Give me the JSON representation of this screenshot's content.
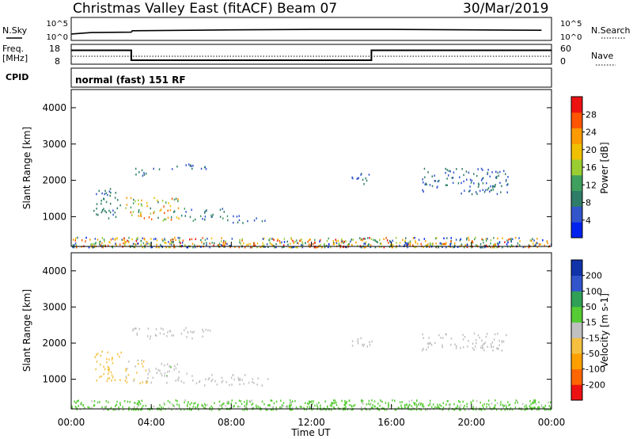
{
  "header": {
    "station": "Christmas Valley East (fitACF)",
    "beam": "Beam 07",
    "date": "30/Mar/2019"
  },
  "strip_labels": {
    "nsky": "N.Sky",
    "nsearch": "N.Search",
    "freq_l1": "Freq.",
    "freq_l2": "[MHz]",
    "nave": "Nave",
    "cpid": "CPID",
    "cpid_value": "normal (fast) 151 RF"
  },
  "time_axis": {
    "label": "Time UT",
    "ticks": [
      "00:00",
      "04:00",
      "08:00",
      "12:00",
      "16:00",
      "20:00",
      "00:00"
    ]
  },
  "colors": {
    "power_scale": [
      "#0022ee",
      "#3355cc",
      "#2e7d68",
      "#3f9f5f",
      "#9acd32",
      "#f0c000",
      "#ff9a00",
      "#ff5500",
      "#ee1111"
    ],
    "velocity_scale": [
      "#ee1111",
      "#ff6600",
      "#ffa000",
      "#f5c040",
      "#c0c0c0",
      "#55cc33",
      "#2fa055",
      "#3355cc",
      "#1133aa"
    ]
  },
  "chart_data": [
    {
      "type": "line",
      "panel": "noise",
      "left_ticks": [
        "10^5",
        "10^0"
      ],
      "right_ticks": [
        "10^5",
        "10^0"
      ],
      "series": [
        {
          "name": "N.Sky",
          "x": [
            0,
            1.0,
            3.0,
            3.05,
            8,
            12,
            16,
            20,
            23.5
          ],
          "y": [
            1.4,
            1.7,
            1.8,
            2.1,
            2.3,
            2.4,
            2.4,
            2.3,
            2.2
          ]
        }
      ]
    },
    {
      "type": "line",
      "panel": "frequency",
      "left_ticks": [
        "18",
        "8"
      ],
      "right_ticks": [
        "60",
        "0"
      ],
      "series": [
        {
          "name": "Freq.",
          "x": [
            0,
            3,
            3,
            15,
            15,
            24
          ],
          "y": [
            15,
            15,
            10,
            10,
            15,
            15
          ]
        }
      ]
    },
    {
      "type": "heatmap",
      "panel": "power",
      "ylabel": "Slant Range [km]",
      "yticks": [
        "1000",
        "2000",
        "3000",
        "4000"
      ],
      "ylim": [
        180,
        4500
      ],
      "xlim": [
        0,
        24
      ],
      "colorbar": {
        "label": "Power [dB]",
        "ticks": [
          "4",
          "8",
          "12",
          "16",
          "20",
          "24",
          "28"
        ],
        "range": [
          0,
          30
        ]
      },
      "regions": [
        {
          "t": [
            1.1,
            2.5
          ],
          "r": [
            950,
            1800
          ],
          "v": [
            6,
            10
          ]
        },
        {
          "t": [
            2.6,
            5.5
          ],
          "r": [
            900,
            1550
          ],
          "v": [
            8,
            26
          ]
        },
        {
          "t": [
            5.5,
            7.8
          ],
          "r": [
            900,
            1250
          ],
          "v": [
            4,
            12
          ]
        },
        {
          "t": [
            8.0,
            9.8
          ],
          "r": [
            850,
            1050
          ],
          "v": [
            4,
            8
          ]
        },
        {
          "t": [
            3.0,
            4.5
          ],
          "r": [
            2150,
            2350
          ],
          "v": [
            5,
            8
          ]
        },
        {
          "t": [
            5.0,
            7.0
          ],
          "r": [
            2300,
            2500
          ],
          "v": [
            5,
            8
          ]
        },
        {
          "t": [
            14.0,
            15.0
          ],
          "r": [
            1900,
            2300
          ],
          "v": [
            5,
            8
          ]
        },
        {
          "t": [
            17.5,
            21.8
          ],
          "r": [
            1600,
            2350
          ],
          "v": [
            5,
            9
          ]
        },
        {
          "t": [
            0.0,
            24.0
          ],
          "r": [
            180,
            450
          ],
          "v": [
            2,
            28
          ]
        }
      ]
    },
    {
      "type": "heatmap",
      "panel": "velocity",
      "ylabel": "Slant Range [km]",
      "yticks": [
        "1000",
        "2000",
        "3000",
        "4000"
      ],
      "ylim": [
        180,
        4500
      ],
      "xlim": [
        0,
        24
      ],
      "colorbar": {
        "label": "Velocity [m s-1]",
        "ticks": [
          "200",
          "100",
          "50",
          "15",
          "-15",
          "-50",
          "-100",
          "-200"
        ],
        "range": [
          -300,
          300
        ]
      },
      "regions": [
        {
          "t": [
            1.1,
            2.5
          ],
          "r": [
            950,
            1800
          ],
          "v": [
            40,
            90
          ]
        },
        {
          "t": [
            2.6,
            3.8
          ],
          "r": [
            900,
            1550
          ],
          "v": [
            20,
            60
          ]
        },
        {
          "t": [
            3.8,
            5.8
          ],
          "r": [
            900,
            1450
          ],
          "v": [
            -40,
            10
          ]
        },
        {
          "t": [
            5.8,
            9.8
          ],
          "r": [
            850,
            1150
          ],
          "v": [
            -10,
            30
          ]
        },
        {
          "t": [
            3.0,
            7.0
          ],
          "r": [
            2150,
            2450
          ],
          "v": [
            -10,
            10
          ]
        },
        {
          "t": [
            14.0,
            15.0
          ],
          "r": [
            1900,
            2300
          ],
          "v": [
            -10,
            10
          ]
        },
        {
          "t": [
            17.5,
            21.8
          ],
          "r": [
            1800,
            2300
          ],
          "v": [
            -10,
            10
          ]
        },
        {
          "t": [
            0.0,
            24.0
          ],
          "r": [
            180,
            450
          ],
          "v": [
            -80,
            -20
          ]
        }
      ]
    }
  ]
}
